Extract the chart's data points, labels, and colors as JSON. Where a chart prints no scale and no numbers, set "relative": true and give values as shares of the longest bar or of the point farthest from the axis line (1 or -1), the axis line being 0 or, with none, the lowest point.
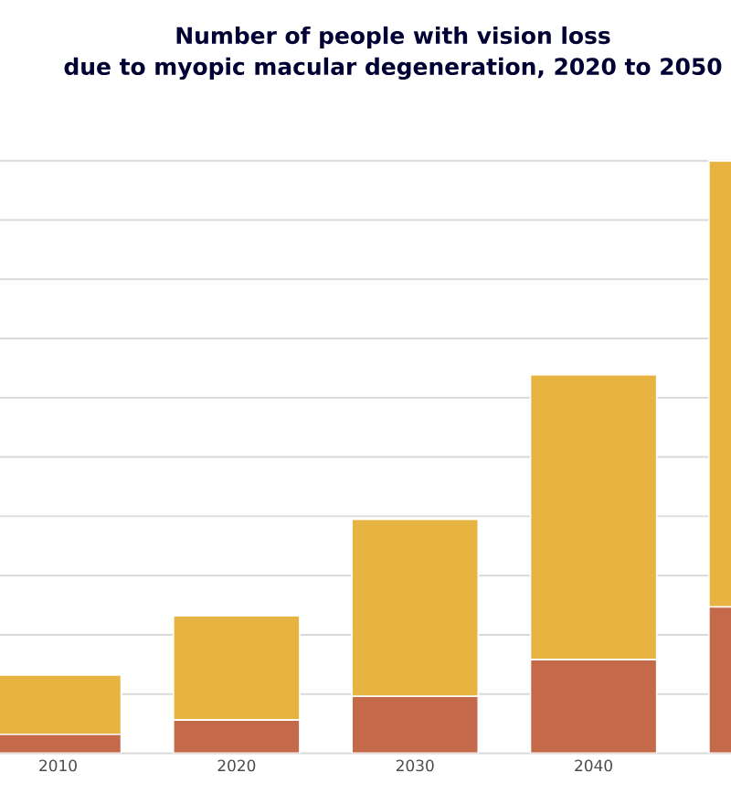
{
  "chart_data": {
    "type": "bar",
    "title": "Number of people with vision loss\ndue to myopic macular degeneration, 2020 to 2050",
    "categories": [
      "2010",
      "2020",
      "2030",
      "2040",
      null
    ],
    "stacked": true,
    "relative": true,
    "grid": "y",
    "series": [
      {
        "color": "#c4694a",
        "values": [
          0.032,
          0.056,
          0.096,
          0.158,
          0.247
        ]
      },
      {
        "color": "#e8b441",
        "values": [
          0.1,
          0.176,
          0.299,
          0.481,
          0.753
        ]
      }
    ]
  }
}
